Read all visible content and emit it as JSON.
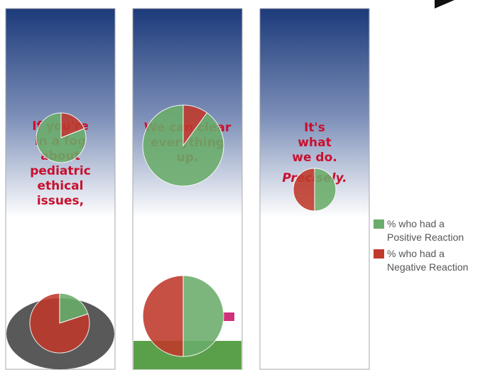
{
  "panels": [
    {
      "lines": [
        "If you're",
        "in a fog",
        "about",
        "pediatric",
        "ethical",
        "issues,"
      ]
    },
    {
      "lines": [
        "We can clear",
        "everything",
        "up."
      ]
    },
    {
      "lines": [
        "It's",
        "what",
        "we do.",
        "Precisely."
      ]
    }
  ],
  "chart_data": {
    "type": "pie",
    "series": [
      {
        "name": "% who had a Positive Reaction",
        "color": "#6aad6a",
        "values": [
          81,
          20,
          90,
          50,
          50
        ]
      },
      {
        "name": "% who had a Negative Reaction",
        "color": "#c0392b",
        "values": [
          19,
          80,
          10,
          50,
          50
        ]
      }
    ],
    "slice_order": [
      [
        1,
        0
      ],
      [
        0,
        1
      ],
      [
        1,
        0
      ],
      [
        0,
        1
      ],
      [
        0,
        1
      ]
    ]
  }
}
